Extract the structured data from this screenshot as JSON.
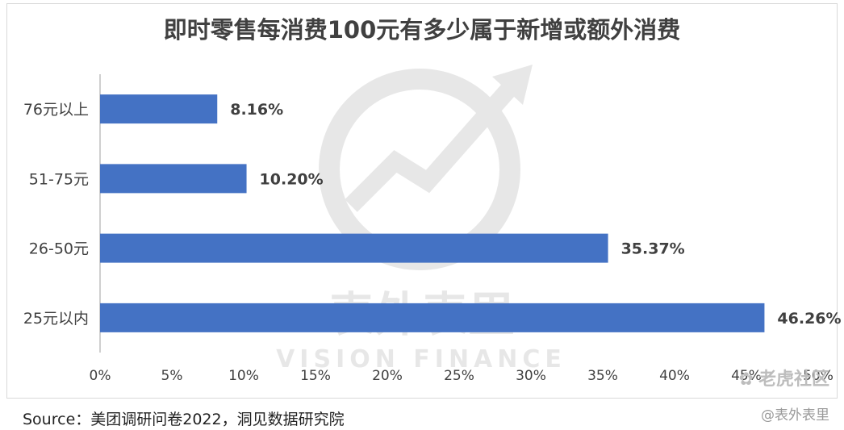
{
  "chart_data": {
    "type": "bar",
    "orientation": "horizontal",
    "title": "即时零售每消费100元有多少属于新增或额外消费",
    "categories": [
      "76元以上",
      "51-75元",
      "26-50元",
      "25元以内"
    ],
    "values": [
      8.16,
      10.2,
      35.37,
      46.26
    ],
    "value_labels": [
      "8.16%",
      "10.20%",
      "35.37%",
      "46.26%"
    ],
    "xlim": [
      0,
      50
    ],
    "x_ticks": [
      "0%",
      "5%",
      "10%",
      "15%",
      "20%",
      "25%",
      "30%",
      "35%",
      "40%",
      "45%",
      "50%"
    ],
    "grid": false,
    "bar_color": "#4472C4"
  },
  "source": "Source：美团调研问卷2022，洞见数据研究院",
  "watermark": {
    "center_cn": "表外表里",
    "center_en": "VISION FINANCE",
    "corner_brand": "老虎社区",
    "corner_handle": "@表外表里"
  }
}
